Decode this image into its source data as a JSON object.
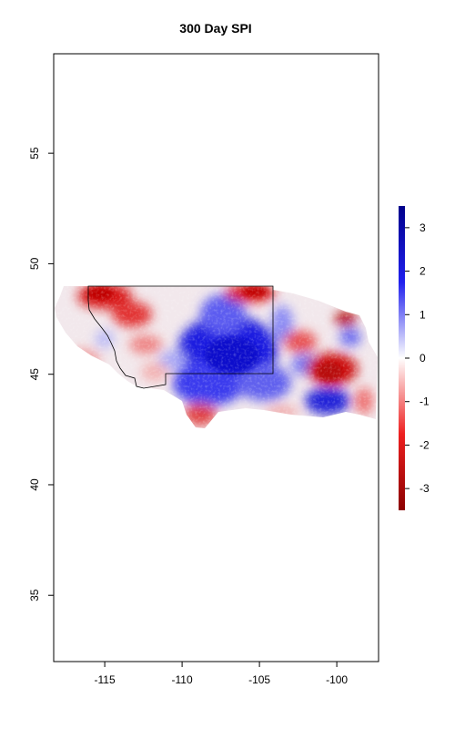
{
  "title": "300 Day SPI",
  "map": {
    "x_ticks": [
      "-115",
      "-110",
      "-105",
      "-100"
    ],
    "x_tick_values": [
      -115,
      -110,
      -105,
      -100
    ],
    "y_ticks": [
      "35",
      "40",
      "45",
      "50",
      "55"
    ],
    "y_tick_values": [
      35,
      40,
      45,
      50,
      55
    ],
    "xlim": [
      -118.3,
      -97.3
    ],
    "ylim": [
      32.0,
      59.5
    ],
    "data_extent": {
      "lon": [
        -118.0,
        -97.3
      ],
      "lat": [
        42.4,
        49.0
      ]
    },
    "state_outline_color": "#000000"
  },
  "legend": {
    "ticks": [
      "3",
      "2",
      "1",
      "0",
      "-1",
      "-2",
      "-3"
    ],
    "tick_values": [
      3,
      2,
      1,
      0,
      -1,
      -2,
      -3
    ],
    "range": [
      -3.5,
      3.5
    ],
    "colors": {
      "low": "#8b0000",
      "mid": "#ffffff",
      "high": "#00008b"
    }
  }
}
